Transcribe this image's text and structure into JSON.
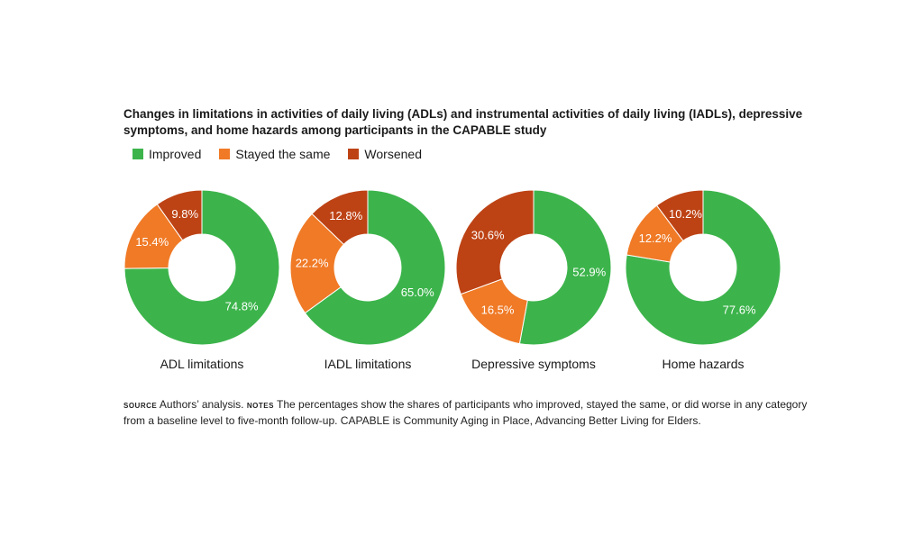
{
  "title": "Changes in limitations in activities of daily living (ADLs) and instrumental activities of daily living (IADLs), depressive symptoms, and home hazards among participants in the CAPABLE study",
  "legend": [
    {
      "label": "Improved",
      "color": "#3cb44b"
    },
    {
      "label": "Stayed the same",
      "color": "#f07a26"
    },
    {
      "label": "Worsened",
      "color": "#bd4315"
    }
  ],
  "chart_data": [
    {
      "type": "pie",
      "title": "ADL limitations",
      "labels": [
        "Improved",
        "Stayed the same",
        "Worsened"
      ],
      "values": [
        74.8,
        15.4,
        9.8
      ],
      "value_labels": [
        "74.8%",
        "15.4%",
        "9.8%"
      ]
    },
    {
      "type": "pie",
      "title": "IADL limitations",
      "labels": [
        "Improved",
        "Stayed the same",
        "Worsened"
      ],
      "values": [
        65.0,
        22.2,
        12.8
      ],
      "value_labels": [
        "65.0%",
        "22.2%",
        "12.8%"
      ]
    },
    {
      "type": "pie",
      "title": "Depressive symptoms",
      "labels": [
        "Improved",
        "Stayed the same",
        "Worsened"
      ],
      "values": [
        52.9,
        16.5,
        30.6
      ],
      "value_labels": [
        "52.9%",
        "16.5%",
        "30.6%"
      ]
    },
    {
      "type": "pie",
      "title": "Home hazards",
      "labels": [
        "Improved",
        "Stayed the same",
        "Worsened"
      ],
      "values": [
        77.6,
        12.2,
        10.2
      ],
      "value_labels": [
        "77.6%",
        "12.2%",
        "10.2%"
      ]
    }
  ],
  "notes": {
    "source_label": "source",
    "source_text": " Authors’ analysis. ",
    "notes_label": "notes",
    "notes_text": " The percentages show the shares of participants who improved, stayed the same, or did worse in any category from a baseline level to five-month follow-up. CAPABLE is Community Aging in Place, Advancing Better Living for Elders."
  }
}
